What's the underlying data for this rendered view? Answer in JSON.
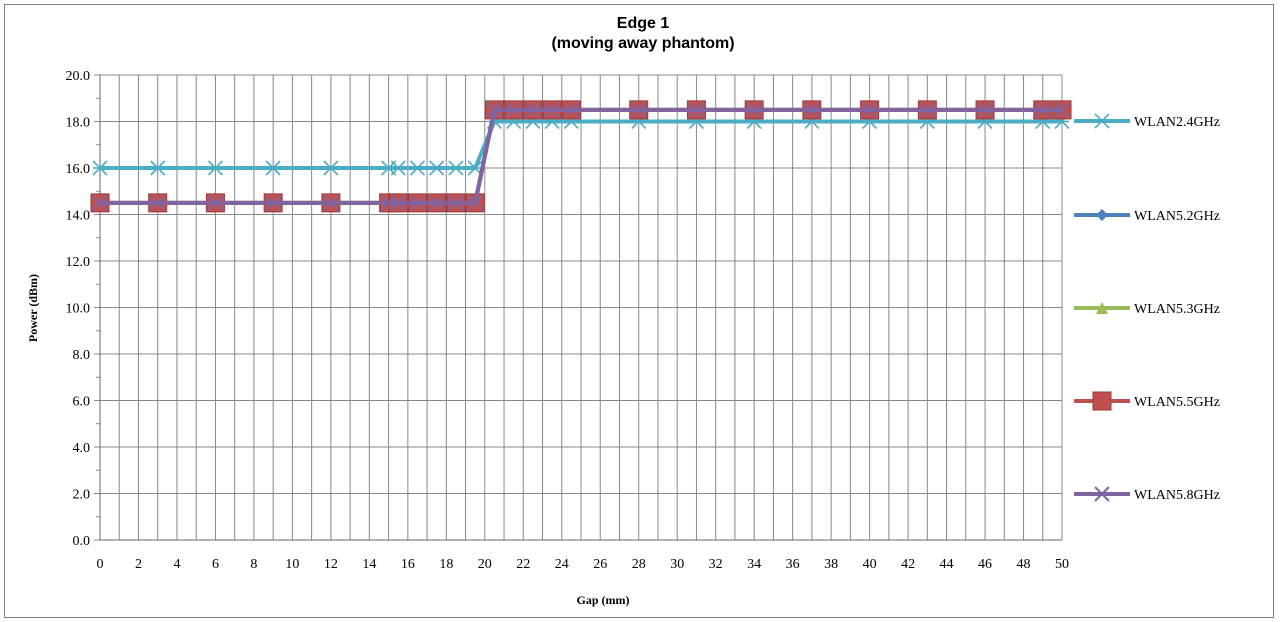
{
  "chart_data": {
    "type": "line",
    "title": "Edge 1",
    "subtitle": "(moving away phantom)",
    "xlabel": "Gap (mm)",
    "ylabel": "Power (dBm)",
    "ylim": [
      0,
      20
    ],
    "y_ticks": [
      "0.0",
      "2.0",
      "4.0",
      "6.0",
      "8.0",
      "10.0",
      "12.0",
      "14.0",
      "16.0",
      "18.0",
      "20.0"
    ],
    "x_tick_labels": [
      "0",
      "2",
      "4",
      "6",
      "8",
      "10",
      "12",
      "14",
      "16",
      "18",
      "20",
      "22",
      "24",
      "26",
      "28",
      "30",
      "32",
      "34",
      "36",
      "38",
      "40",
      "42",
      "44",
      "46",
      "48",
      "50"
    ],
    "grid": true,
    "legend_position": "right",
    "x": [
      0,
      3,
      6,
      9,
      12,
      15,
      15.5,
      16.5,
      17.5,
      18.5,
      19.5,
      20.5,
      21.5,
      22.5,
      23.5,
      24.5,
      28,
      31,
      34,
      37,
      40,
      43,
      46,
      49,
      50
    ],
    "series": [
      {
        "name": "WLAN2.4GHz",
        "color": "#4bacc6",
        "marker": "asterisk",
        "values": [
          16,
          16,
          16,
          16,
          16,
          16,
          16,
          16,
          16,
          16,
          16,
          18,
          18,
          18,
          18,
          18,
          18,
          18,
          18,
          18,
          18,
          18,
          18,
          18,
          18
        ]
      },
      {
        "name": "WLAN5.2GHz",
        "color": "#4f81bd",
        "marker": "diamond",
        "values": [
          14.5,
          14.5,
          14.5,
          14.5,
          14.5,
          14.5,
          14.5,
          14.5,
          14.5,
          14.5,
          14.5,
          18.5,
          18.5,
          18.5,
          18.5,
          18.5,
          18.5,
          18.5,
          18.5,
          18.5,
          18.5,
          18.5,
          18.5,
          18.5,
          18.5
        ]
      },
      {
        "name": "WLAN5.3GHz",
        "color": "#9bbb59",
        "marker": "triangle",
        "values": [
          14.5,
          14.5,
          14.5,
          14.5,
          14.5,
          14.5,
          14.5,
          14.5,
          14.5,
          14.5,
          14.5,
          18.5,
          18.5,
          18.5,
          18.5,
          18.5,
          18.5,
          18.5,
          18.5,
          18.5,
          18.5,
          18.5,
          18.5,
          18.5,
          18.5
        ]
      },
      {
        "name": "WLAN5.5GHz",
        "color": "#c0504d",
        "marker": "square",
        "values": [
          14.5,
          14.5,
          14.5,
          14.5,
          14.5,
          14.5,
          14.5,
          14.5,
          14.5,
          14.5,
          14.5,
          18.5,
          18.5,
          18.5,
          18.5,
          18.5,
          18.5,
          18.5,
          18.5,
          18.5,
          18.5,
          18.5,
          18.5,
          18.5,
          18.5
        ]
      },
      {
        "name": "WLAN5.8GHz",
        "color": "#8064a2",
        "marker": "x",
        "values": [
          14.5,
          14.5,
          14.5,
          14.5,
          14.5,
          14.5,
          14.5,
          14.5,
          14.5,
          14.5,
          14.5,
          18.5,
          18.5,
          18.5,
          18.5,
          18.5,
          18.5,
          18.5,
          18.5,
          18.5,
          18.5,
          18.5,
          18.5,
          18.5,
          18.5
        ]
      }
    ]
  }
}
